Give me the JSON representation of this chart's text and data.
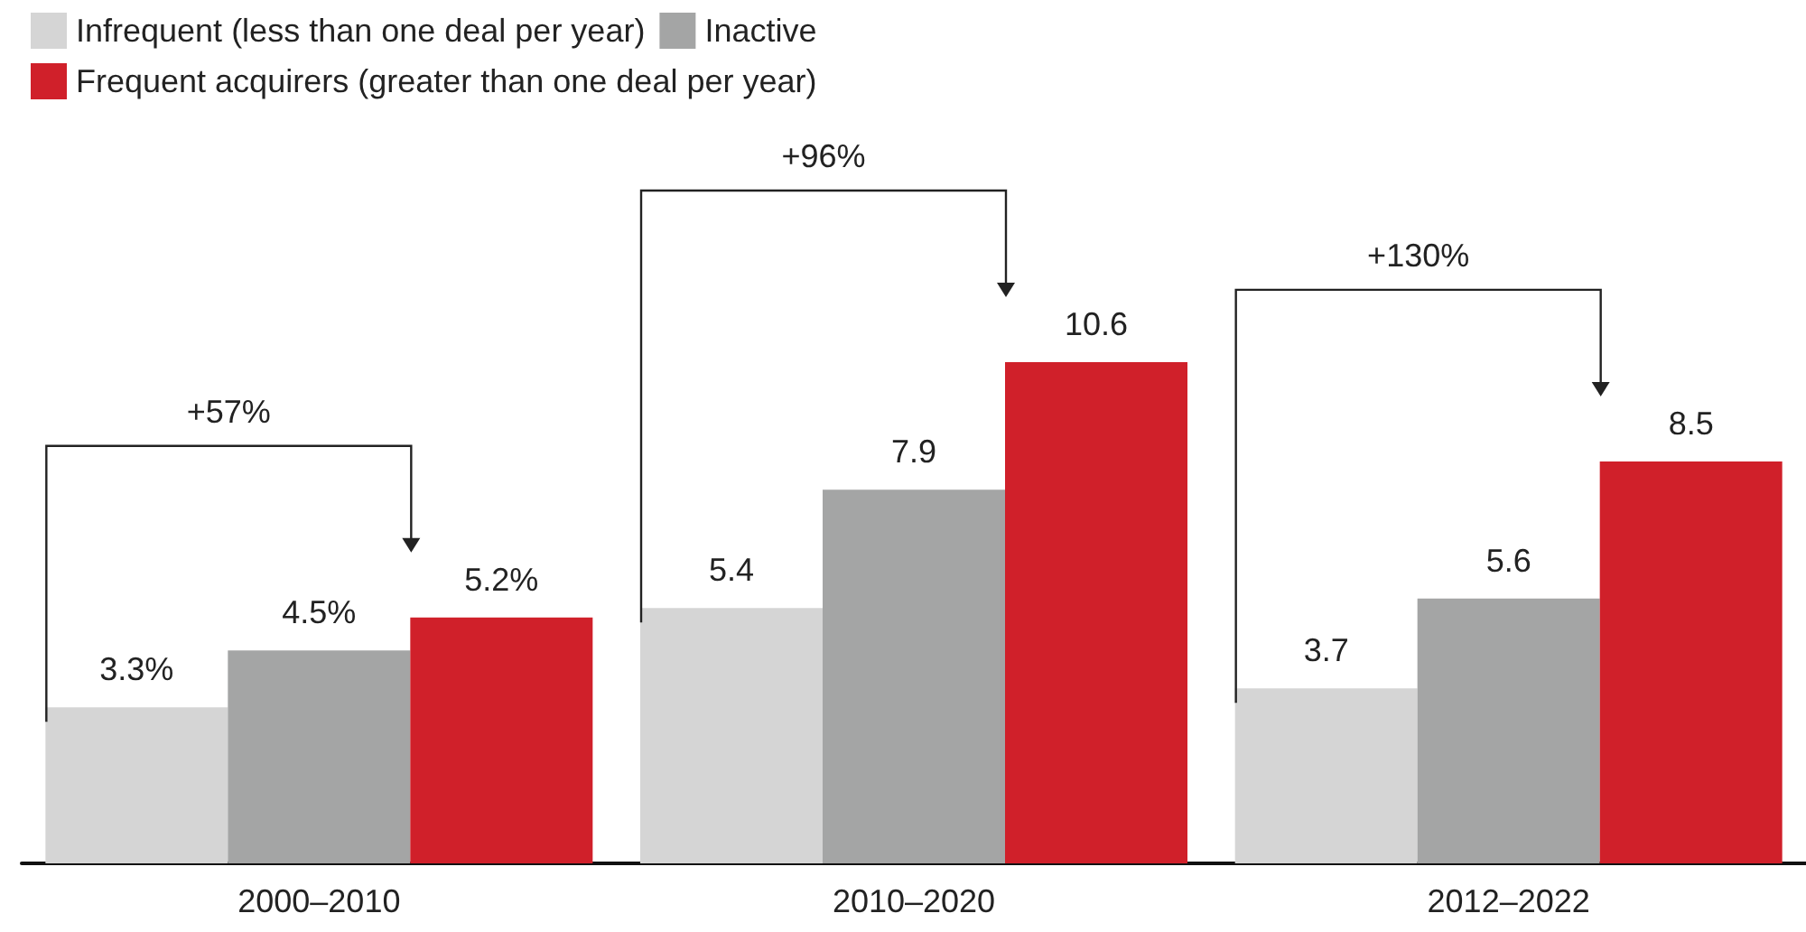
{
  "chart_data": {
    "type": "bar",
    "categories": [
      "2000–2010",
      "2010–2020",
      "2012–2022"
    ],
    "series": [
      {
        "name": "Infrequent (less than one deal per year)",
        "color": "#d5d5d5",
        "values": [
          3.3,
          5.4,
          3.7
        ],
        "value_labels": [
          "3.3%",
          "5.4",
          "3.7"
        ]
      },
      {
        "name": "Inactive",
        "color": "#a4a5a5",
        "values": [
          4.5,
          7.9,
          5.6
        ],
        "value_labels": [
          "4.5%",
          "7.9",
          "5.6"
        ]
      },
      {
        "name": "Frequent acquirers (greater than one deal per year)",
        "color": "#d0202a",
        "values": [
          5.2,
          10.6,
          8.5
        ],
        "value_labels": [
          "5.2%",
          "10.6",
          "8.5"
        ]
      }
    ],
    "annotations": [
      "+57%",
      "+96%",
      "+130%"
    ],
    "legend": "top left",
    "grid": false
  }
}
